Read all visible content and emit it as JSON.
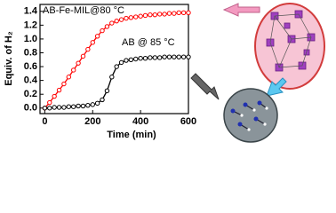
{
  "chart_data": {
    "type": "line",
    "xlabel": "Time (min)",
    "ylabel": "Equiv. of H₂",
    "annotations": [
      "AB-Fe-MIL@80 °C",
      "AB @ 85 °C"
    ],
    "x": [
      0,
      20,
      40,
      60,
      80,
      100,
      120,
      140,
      160,
      180,
      200,
      220,
      240,
      260,
      280,
      300,
      320,
      340,
      360,
      380,
      400,
      420,
      440,
      460,
      480,
      500,
      520,
      540,
      560,
      580,
      600
    ],
    "series": [
      {
        "name": "AB-Fe-MIL@80 °C",
        "color": "#ff0000",
        "values": [
          0,
          0.08,
          0.17,
          0.26,
          0.35,
          0.45,
          0.55,
          0.65,
          0.75,
          0.85,
          0.95,
          1.04,
          1.12,
          1.18,
          1.23,
          1.26,
          1.28,
          1.3,
          1.31,
          1.32,
          1.33,
          1.34,
          1.35,
          1.35,
          1.36,
          1.36,
          1.37,
          1.37,
          1.38,
          1.38,
          1.38
        ]
      },
      {
        "name": "AB @ 85 °C",
        "color": "#000000",
        "values": [
          0,
          0,
          0.01,
          0.01,
          0.01,
          0.02,
          0.02,
          0.03,
          0.03,
          0.04,
          0.05,
          0.07,
          0.12,
          0.25,
          0.45,
          0.6,
          0.66,
          0.69,
          0.7,
          0.71,
          0.72,
          0.72,
          0.73,
          0.73,
          0.73,
          0.74,
          0.74,
          0.74,
          0.74,
          0.74,
          0.74
        ]
      }
    ],
    "xlim": [
      -20,
      600
    ],
    "xticks": [
      0,
      200,
      400,
      600
    ],
    "ylim": [
      -0.08,
      1.5
    ],
    "yticks": [
      {
        "value": 0,
        "label": "0.0"
      },
      0.2,
      0.4,
      0.6,
      0.8,
      {
        "value": 1,
        "label": "1.0"
      },
      1.2,
      1.4
    ]
  }
}
